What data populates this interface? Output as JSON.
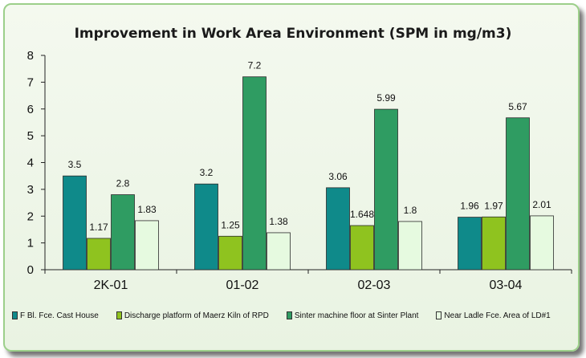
{
  "chart_data": {
    "type": "bar",
    "title": "Improvement in Work Area Environment (SPM in mg/m3)",
    "categories": [
      "2K-01",
      "01-02",
      "02-03",
      "03-04"
    ],
    "ylim": [
      0,
      8
    ],
    "yticks": [
      "0",
      "1",
      "2",
      "3",
      "4",
      "5",
      "6",
      "7",
      "8"
    ],
    "grid": false,
    "legend_position": "bottom",
    "series": [
      {
        "name": "F Bl. Fce. Cast House",
        "color": "#0f8a8a",
        "values": [
          3.5,
          3.2,
          3.06,
          1.96
        ],
        "labels": [
          "3.5",
          "3.2",
          "3.06",
          "1.96"
        ]
      },
      {
        "name": "Discharge platform of Maerz Kiln of RPD",
        "color": "#8fc31f",
        "values": [
          1.17,
          1.25,
          1.648,
          1.97
        ],
        "labels": [
          "1.17",
          "1.25",
          "1.648",
          "1.97"
        ]
      },
      {
        "name": "Sinter machine floor at Sinter Plant",
        "color": "#2f9c62",
        "values": [
          2.8,
          7.2,
          5.99,
          5.67
        ],
        "labels": [
          "2.8",
          "7.2",
          "5.99",
          "5.67"
        ]
      },
      {
        "name": "Near Ladle Fce. Area of LD#1",
        "color": "#e6fae0",
        "values": [
          1.83,
          1.38,
          1.8,
          2.01
        ],
        "labels": [
          "1.83",
          "1.38",
          "1.8",
          "2.01"
        ]
      }
    ]
  }
}
